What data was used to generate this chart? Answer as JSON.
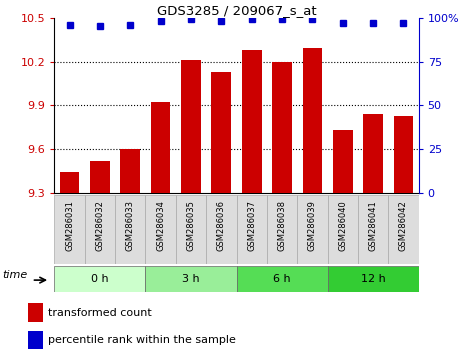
{
  "title": "GDS3285 / 209067_s_at",
  "categories": [
    "GSM286031",
    "GSM286032",
    "GSM286033",
    "GSM286034",
    "GSM286035",
    "GSM286036",
    "GSM286037",
    "GSM286038",
    "GSM286039",
    "GSM286040",
    "GSM286041",
    "GSM286042"
  ],
  "bar_values": [
    9.44,
    9.52,
    9.6,
    9.92,
    10.21,
    10.13,
    10.28,
    10.2,
    10.29,
    9.73,
    9.84,
    9.83
  ],
  "percentile_values": [
    96,
    95,
    96,
    98,
    99,
    98,
    99,
    99,
    99,
    97,
    97,
    97
  ],
  "bar_color": "#cc0000",
  "dot_color": "#0000cc",
  "ylim_left": [
    9.3,
    10.5
  ],
  "ylim_right": [
    0,
    100
  ],
  "yticks_left": [
    9.3,
    9.6,
    9.9,
    10.2,
    10.5
  ],
  "yticks_right": [
    0,
    25,
    50,
    75,
    100
  ],
  "groups": [
    {
      "label": "0 h",
      "start": 0,
      "end": 3,
      "color": "#ccffcc"
    },
    {
      "label": "3 h",
      "start": 3,
      "end": 6,
      "color": "#99ee99"
    },
    {
      "label": "6 h",
      "start": 6,
      "end": 9,
      "color": "#55dd55"
    },
    {
      "label": "12 h",
      "start": 9,
      "end": 12,
      "color": "#33cc33"
    }
  ],
  "time_label": "time",
  "legend_bar_label": "transformed count",
  "legend_dot_label": "percentile rank within the sample",
  "background_color": "#ffffff"
}
